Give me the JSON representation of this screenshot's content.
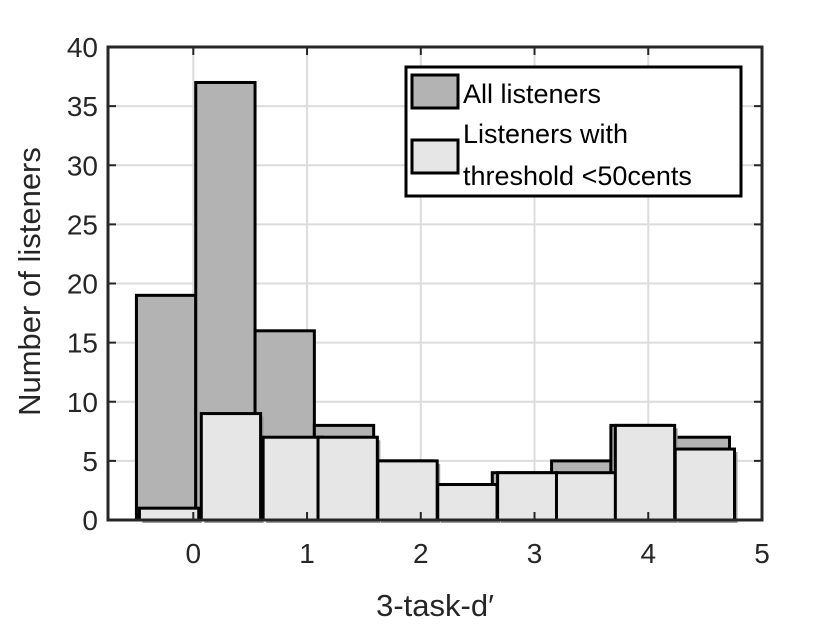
{
  "chart_data": {
    "type": "bar",
    "xlabel": "3-task-d′",
    "ylabel": "Number of listeners",
    "xlim": [
      -0.75,
      5.0
    ],
    "ylim": [
      0,
      40
    ],
    "xticks": [
      "0",
      "1",
      "2",
      "3",
      "4",
      "5"
    ],
    "yticks": [
      "0",
      "5",
      "10",
      "15",
      "20",
      "25",
      "30",
      "35",
      "40"
    ],
    "grid": true,
    "legend_position": "top-right",
    "series": [
      {
        "name": "All listeners",
        "color": "#b3b3b3",
        "bin_width": 0.5214,
        "bins": [
          {
            "x_start": -0.5,
            "value": 19
          },
          {
            "x_start": 0.0214,
            "value": 37
          },
          {
            "x_start": 0.5429,
            "value": 16
          },
          {
            "x_start": 1.0643,
            "value": 8
          },
          {
            "x_start": 1.5857,
            "value": 5
          },
          {
            "x_start": 2.1071,
            "value": 3
          },
          {
            "x_start": 2.6286,
            "value": 4
          },
          {
            "x_start": 3.15,
            "value": 5
          },
          {
            "x_start": 3.6714,
            "value": 8
          },
          {
            "x_start": 4.1929,
            "value": 7
          }
        ]
      },
      {
        "name": "Listeners with threshold <50cents",
        "legend_lines": [
          "Listeners with",
          "threshold <50cents"
        ],
        "color": "#e6e6e6",
        "bin_width": 0.5214,
        "bins": [
          {
            "x_start": -0.4737,
            "value": 1
          },
          {
            "x_start": 0.0702,
            "value": 9
          },
          {
            "x_start": 0.614,
            "value": 7
          },
          {
            "x_start": 1.0965,
            "value": 7
          },
          {
            "x_start": 1.6228,
            "value": 5
          },
          {
            "x_start": 2.1491,
            "value": 3
          },
          {
            "x_start": 2.6754,
            "value": 4
          },
          {
            "x_start": 3.193,
            "value": 4
          },
          {
            "x_start": 3.7105,
            "value": 8
          },
          {
            "x_start": 4.2368,
            "value": 6
          }
        ]
      }
    ]
  }
}
